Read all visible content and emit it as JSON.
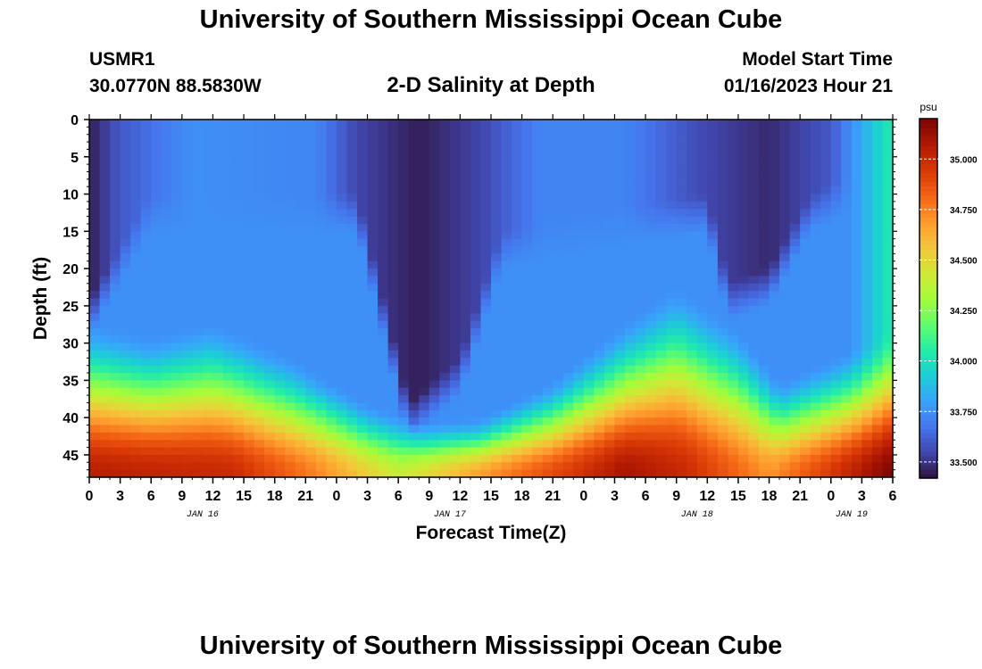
{
  "page": {
    "title": "University of Southern Mississippi Ocean Cube",
    "station": "USMR1",
    "coordinates": "30.0770N  88.5830W",
    "subtitle": "2-D Salinity at Depth",
    "model_start_label": "Model Start Time",
    "model_start_value": "01/16/2023 Hour 21",
    "footer_title": "University of Southern Mississippi Ocean Cube"
  },
  "chart_data": {
    "type": "heatmap",
    "title": "2-D Salinity at Depth",
    "xlabel": "Forecast Time(Z)",
    "ylabel": "Depth (ft)",
    "x_tick_labels": [
      "0",
      "3",
      "6",
      "9",
      "12",
      "15",
      "18",
      "21",
      "0",
      "3",
      "6",
      "9",
      "12",
      "15",
      "18",
      "21",
      "0",
      "3",
      "6",
      "9",
      "12",
      "15",
      "18",
      "21",
      "0",
      "3",
      "6"
    ],
    "x_range_hours": [
      0,
      78
    ],
    "day_labels": [
      {
        "label": "JAN 16",
        "hour": 11
      },
      {
        "label": "JAN 17",
        "hour": 35
      },
      {
        "label": "JAN 18",
        "hour": 59
      },
      {
        "label": "JAN 19",
        "hour": 74
      }
    ],
    "y_ticks": [
      0,
      5,
      10,
      15,
      20,
      25,
      30,
      35,
      40,
      45
    ],
    "ylim": [
      0,
      48
    ],
    "y_inverted": true,
    "colorbar": {
      "unit": "psu",
      "range": [
        33.42,
        35.2
      ],
      "ticks": [
        "33.500",
        "33.750",
        "34.000",
        "34.250",
        "34.500",
        "34.750",
        "35.000"
      ],
      "colormap": [
        "#30123b",
        "#4145ab",
        "#4675ed",
        "#39a2fc",
        "#1bcfd4",
        "#24eca6",
        "#61fc6c",
        "#a4fc3b",
        "#d1e834",
        "#f3c63a",
        "#fe9b2d",
        "#f36315",
        "#d93806",
        "#b11901",
        "#7a0402"
      ]
    },
    "halocline_depth_ft": [
      {
        "hour": 0,
        "depth": 33
      },
      {
        "hour": 6,
        "depth": 35
      },
      {
        "hour": 12,
        "depth": 33
      },
      {
        "hour": 20,
        "depth": 38
      },
      {
        "hour": 27,
        "depth": 44
      },
      {
        "hour": 32,
        "depth": 46.5
      },
      {
        "hour": 38,
        "depth": 46
      },
      {
        "hour": 45,
        "depth": 41
      },
      {
        "hour": 52,
        "depth": 33
      },
      {
        "hour": 57,
        "depth": 28
      },
      {
        "hour": 63,
        "depth": 34
      },
      {
        "hour": 67,
        "depth": 41
      },
      {
        "hour": 72,
        "depth": 38
      },
      {
        "hour": 78,
        "depth": 34
      }
    ],
    "surface_salinity_psu": [
      {
        "hour": 0,
        "value": 33.45
      },
      {
        "hour": 3,
        "value": 33.6
      },
      {
        "hour": 10,
        "value": 33.75
      },
      {
        "hour": 22,
        "value": 33.72
      },
      {
        "hour": 26,
        "value": 33.55
      },
      {
        "hour": 32,
        "value": 33.45
      },
      {
        "hour": 38,
        "value": 33.55
      },
      {
        "hour": 44,
        "value": 33.72
      },
      {
        "hour": 52,
        "value": 33.72
      },
      {
        "hour": 60,
        "value": 33.55
      },
      {
        "hour": 66,
        "value": 33.48
      },
      {
        "hour": 72,
        "value": 33.6
      },
      {
        "hour": 76,
        "value": 33.9
      },
      {
        "hour": 78,
        "value": 34.05
      }
    ],
    "fresh_core_depth_ft": [
      {
        "hour": 0,
        "depth": 24
      },
      {
        "hour": 6,
        "depth": 10
      },
      {
        "hour": 26,
        "depth": 10
      },
      {
        "hour": 31,
        "depth": 38
      },
      {
        "hour": 36,
        "depth": 32
      },
      {
        "hour": 40,
        "depth": 15
      },
      {
        "hour": 60,
        "depth": 10
      },
      {
        "hour": 62,
        "depth": 22
      },
      {
        "hour": 66,
        "depth": 20
      },
      {
        "hour": 70,
        "depth": 10
      },
      {
        "hour": 78,
        "depth": 5
      }
    ],
    "bottom_salinity_psu": [
      {
        "hour": 0,
        "value": 35.05
      },
      {
        "hour": 14,
        "value": 35.0
      },
      {
        "hour": 22,
        "value": 34.75
      },
      {
        "hour": 30,
        "value": 34.4
      },
      {
        "hour": 40,
        "value": 34.75
      },
      {
        "hour": 52,
        "value": 35.1
      },
      {
        "hour": 58,
        "value": 35.0
      },
      {
        "hour": 66,
        "value": 34.7
      },
      {
        "hour": 72,
        "value": 34.95
      },
      {
        "hour": 78,
        "value": 35.2
      }
    ]
  }
}
